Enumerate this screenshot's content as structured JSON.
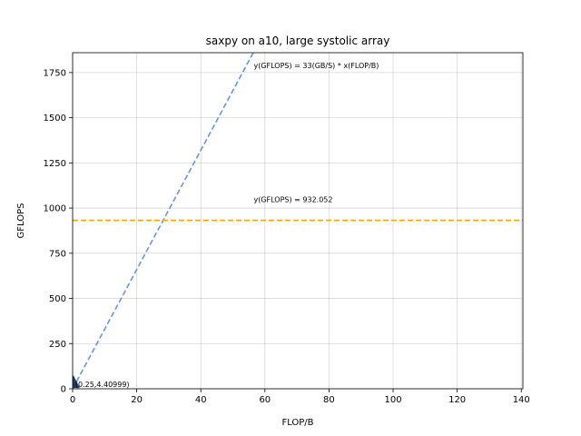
{
  "chart_data": {
    "type": "line",
    "title": "saxpy on a10, large systolic array",
    "xlabel": "FLOP/B",
    "ylabel": "GFLOPS",
    "xlim": [
      0,
      140.5
    ],
    "ylim": [
      0,
      1860
    ],
    "xticks": [
      0,
      20,
      40,
      60,
      80,
      100,
      120,
      140
    ],
    "yticks": [
      0,
      250,
      500,
      750,
      1000,
      1250,
      1500,
      1750
    ],
    "grid": true,
    "series": [
      {
        "kind": "line",
        "style": "dashed",
        "color": "#6495ed",
        "slope": 33,
        "x": [
          0,
          56.36
        ],
        "y": [
          0,
          1860
        ]
      },
      {
        "kind": "hline",
        "style": "dashed",
        "color": "#ffa500",
        "y": 932.052
      },
      {
        "kind": "point",
        "marker": "triangle",
        "color": "#1f3a6b",
        "x": 0.25,
        "y": 4.40999
      }
    ],
    "annotations": [
      {
        "text": "y(GFLOPS) = 33(GB/S) * x(FLOP/B)",
        "x": 56.5,
        "y": 1775
      },
      {
        "text": "y(GFLOPS) = 932.052",
        "x": 56.5,
        "y": 1032
      },
      {
        "text": "(0.25,4.40999)",
        "x": 0.25,
        "y": 4.40999
      }
    ]
  }
}
